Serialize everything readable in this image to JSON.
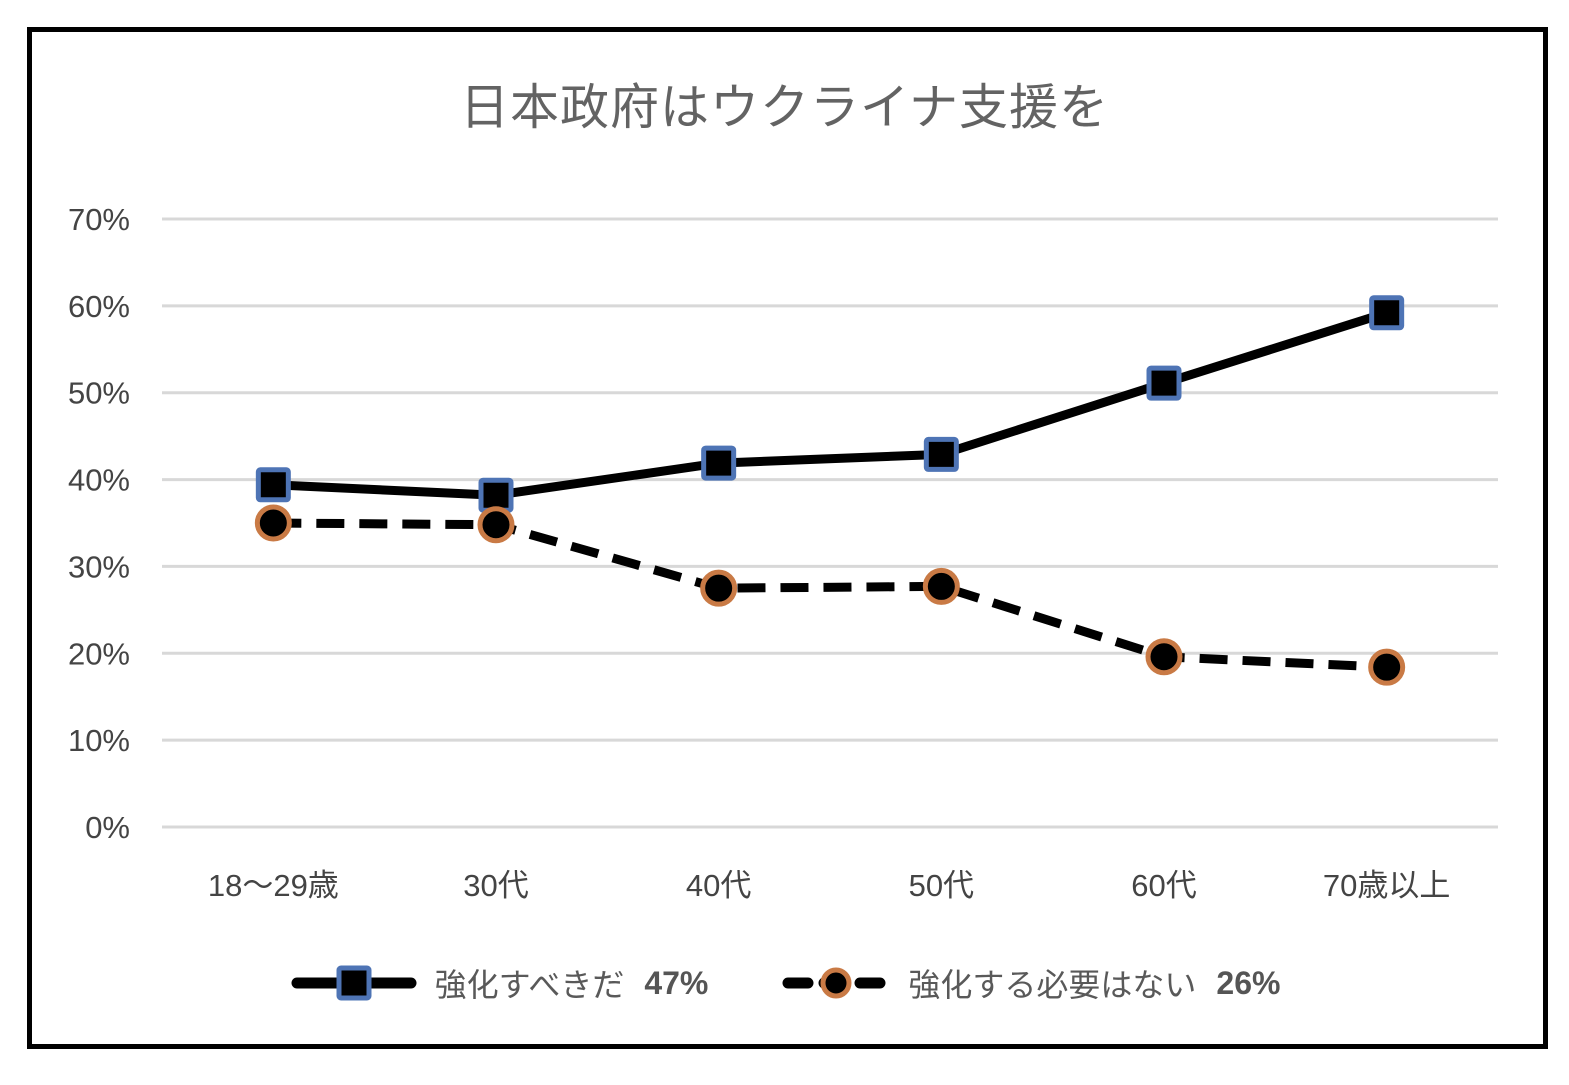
{
  "chart_data": {
    "type": "line",
    "title": "日本政府はウクライナ支援を",
    "categories": [
      "18〜29歳",
      "30代",
      "40代",
      "50代",
      "60代",
      "70歳以上"
    ],
    "series": [
      {
        "name": "強化すべきだ",
        "overall_label": "47%",
        "legend_label": "強化すべきだ 47%",
        "line_style": "solid",
        "line_color": "#000000",
        "marker": "square",
        "marker_fill": "#000000",
        "marker_border_color": "#4e74b5",
        "values": [
          39.4,
          38.2,
          41.9,
          42.9,
          51.1,
          59.2
        ]
      },
      {
        "name": "強化する必要はない",
        "overall_label": "26%",
        "legend_label": "強化する必要はない 26%",
        "line_style": "dashed",
        "line_color": "#000000",
        "marker": "circle",
        "marker_fill": "#000000",
        "marker_border_color": "#c97a45",
        "values": [
          35.0,
          34.8,
          27.5,
          27.7,
          19.6,
          18.4
        ]
      }
    ],
    "y_axis": {
      "range": [
        0,
        70
      ],
      "ticks": [
        {
          "label": "0%",
          "value": 0
        },
        {
          "label": "10%",
          "value": 10
        },
        {
          "label": "20%",
          "value": 20
        },
        {
          "label": "30%",
          "value": 30
        },
        {
          "label": "40%",
          "value": 40
        },
        {
          "label": "50%",
          "value": 50
        },
        {
          "label": "60%",
          "value": 60
        },
        {
          "label": "70%",
          "value": 70
        }
      ],
      "grid": true
    },
    "legend_position": "bottom",
    "colors": {
      "grid": "#d8d8d8",
      "title_text": "#636363",
      "axis_text": "#444444",
      "legend_text": "#595959",
      "frame_border": "#000000",
      "background": "#ffffff"
    }
  }
}
